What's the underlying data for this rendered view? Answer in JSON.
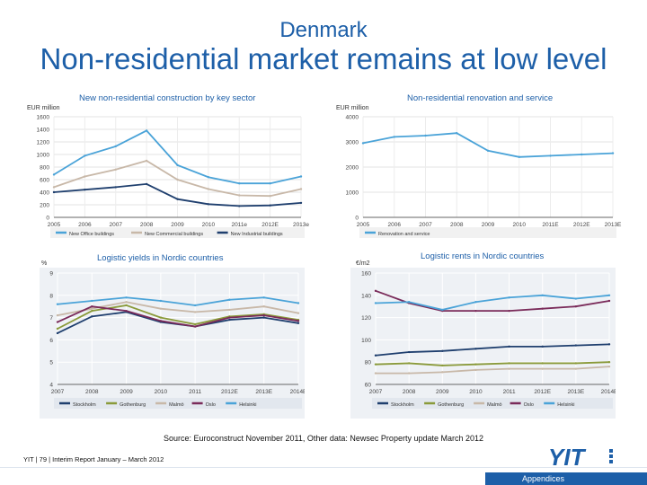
{
  "slide": {
    "subtitle": "Denmark",
    "title": "Non-residential market remains at low level",
    "source": "Source: Euroconstruct November 2011, Other data: Newsec Property update March 2012",
    "footer": "YIT  |  79  |  Interim Report January – March 2012",
    "logo_text": "YIT",
    "appendix_label": "Appendices",
    "colors": {
      "title": "#1d5fa8",
      "appendix_bg": "#1d5fa8"
    }
  },
  "chart_data": [
    {
      "type": "line",
      "title": "New non-residential construction by key sector",
      "ylabel": "EUR million",
      "categories": [
        "2005",
        "2006",
        "2007",
        "2008",
        "2009",
        "2010",
        "2011e",
        "2012E",
        "2013e"
      ],
      "ylim": [
        0,
        1600
      ],
      "yticks": [
        0,
        200,
        400,
        600,
        800,
        1000,
        1200,
        1400,
        1600
      ],
      "grid": true,
      "legend_position": "bottom",
      "series": [
        {
          "name": "New Office buildings",
          "color": "#4aa3d8",
          "values": [
            680,
            980,
            1130,
            1380,
            830,
            640,
            540,
            540,
            650
          ]
        },
        {
          "name": "New Commercial buildings",
          "color": "#c8b8a8",
          "values": [
            480,
            650,
            760,
            900,
            600,
            450,
            350,
            340,
            450
          ]
        },
        {
          "name": "New Industrial buildings",
          "color": "#1f3f6e",
          "values": [
            400,
            440,
            480,
            530,
            290,
            210,
            180,
            190,
            230
          ]
        }
      ]
    },
    {
      "type": "line",
      "title": "Non-residential renovation and service",
      "ylabel": "EUR million",
      "categories": [
        "2005",
        "2006",
        "2007",
        "2008",
        "2009",
        "2010",
        "2011E",
        "2012E",
        "2013E"
      ],
      "ylim": [
        0,
        4000
      ],
      "yticks": [
        0,
        1000,
        2000,
        3000,
        4000
      ],
      "grid": true,
      "legend_position": "bottom",
      "series": [
        {
          "name": "Renovation and service",
          "color": "#4aa3d8",
          "values": [
            2950,
            3200,
            3250,
            3350,
            2650,
            2400,
            2450,
            2500,
            2550
          ]
        }
      ]
    },
    {
      "type": "line",
      "title": "Logistic yields in Nordic countries",
      "ylabel": "%",
      "categories": [
        "2007",
        "2008",
        "2009",
        "2010",
        "2011",
        "2012E",
        "2013E",
        "2014E"
      ],
      "ylim": [
        4,
        9
      ],
      "yticks": [
        4,
        5,
        6,
        7,
        8,
        9
      ],
      "grid": true,
      "legend_position": "bottom",
      "series": [
        {
          "name": "Stockholm",
          "color": "#1f3f6e",
          "values": [
            6.3,
            7.05,
            7.25,
            6.8,
            6.6,
            6.9,
            7.0,
            6.75
          ]
        },
        {
          "name": "Gothenburg",
          "color": "#8a9a3a",
          "values": [
            6.5,
            7.3,
            7.55,
            7.0,
            6.7,
            7.05,
            7.15,
            6.9
          ]
        },
        {
          "name": "Malmö",
          "color": "#c8b8a8",
          "values": [
            7.1,
            7.4,
            7.7,
            7.4,
            7.25,
            7.35,
            7.5,
            7.2
          ]
        },
        {
          "name": "Oslo",
          "color": "#7a2b5a",
          "values": [
            6.8,
            7.5,
            7.3,
            6.85,
            6.6,
            7.0,
            7.1,
            6.85
          ]
        },
        {
          "name": "Helsinki",
          "color": "#4aa3d8",
          "values": [
            7.6,
            7.75,
            7.9,
            7.75,
            7.55,
            7.8,
            7.9,
            7.65
          ]
        }
      ]
    },
    {
      "type": "line",
      "title": "Logistic rents in Nordic countries",
      "ylabel": "€/m2",
      "categories": [
        "2007",
        "2008",
        "2009",
        "2010",
        "2011",
        "2012E",
        "2013E",
        "2014E"
      ],
      "ylim": [
        60,
        160
      ],
      "yticks": [
        60,
        80,
        100,
        120,
        140,
        160
      ],
      "grid": true,
      "legend_position": "bottom",
      "series": [
        {
          "name": "Stockholm",
          "color": "#1f3f6e",
          "values": [
            86,
            89,
            90,
            92,
            94,
            94,
            95,
            96
          ]
        },
        {
          "name": "Gothenburg",
          "color": "#8a9a3a",
          "values": [
            78,
            79,
            77,
            78,
            79,
            79,
            79,
            80
          ]
        },
        {
          "name": "Malmö",
          "color": "#c8b8a8",
          "values": [
            70,
            70,
            71,
            73,
            74,
            74,
            74,
            76
          ]
        },
        {
          "name": "Oslo",
          "color": "#7a2b5a",
          "values": [
            144,
            133,
            126,
            126,
            126,
            128,
            130,
            135
          ]
        },
        {
          "name": "Helsinki",
          "color": "#4aa3d8",
          "values": [
            133,
            134,
            127,
            134,
            138,
            140,
            137,
            140
          ]
        }
      ]
    }
  ]
}
